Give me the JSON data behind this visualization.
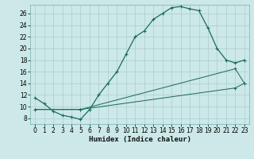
{
  "xlabel": "Humidex (Indice chaleur)",
  "bg_color": "#cce8e8",
  "line_color": "#1a6b5a",
  "grid_color": "#aacece",
  "xlim": [
    -0.5,
    23.5
  ],
  "ylim": [
    7,
    27.5
  ],
  "xtick_labels": [
    "0",
    "1",
    "2",
    "3",
    "4",
    "5",
    "6",
    "7",
    "8",
    "9",
    "10",
    "11",
    "12",
    "13",
    "14",
    "15",
    "16",
    "17",
    "18",
    "19",
    "20",
    "21",
    "22",
    "23"
  ],
  "xtick_vals": [
    0,
    1,
    2,
    3,
    4,
    5,
    6,
    7,
    8,
    9,
    10,
    11,
    12,
    13,
    14,
    15,
    16,
    17,
    18,
    19,
    20,
    21,
    22,
    23
  ],
  "ytick_vals": [
    8,
    10,
    12,
    14,
    16,
    18,
    20,
    22,
    24,
    26
  ],
  "curve1_x": [
    0,
    1,
    2,
    3,
    4,
    5,
    6,
    7,
    8,
    9,
    10,
    11,
    12,
    13,
    14,
    15,
    16,
    17,
    18,
    19,
    20,
    21,
    22,
    23
  ],
  "curve1_y": [
    11.5,
    10.5,
    9.2,
    8.5,
    8.2,
    7.8,
    9.5,
    12.0,
    14.0,
    16.0,
    19.0,
    22.0,
    23.0,
    25.0,
    26.0,
    27.0,
    27.2,
    26.8,
    26.5,
    23.5,
    20.0,
    18.0,
    17.5,
    18.0
  ],
  "curve2_x": [
    0,
    5,
    22,
    23
  ],
  "curve2_y": [
    9.5,
    9.5,
    16.5,
    14.0
  ],
  "curve3_x": [
    0,
    5,
    22,
    23
  ],
  "curve3_y": [
    9.5,
    9.5,
    13.2,
    14.0
  ],
  "xlabel_fontsize": 6.5,
  "tick_fontsize": 5.5,
  "linewidth": 0.9,
  "markersize": 3.0
}
